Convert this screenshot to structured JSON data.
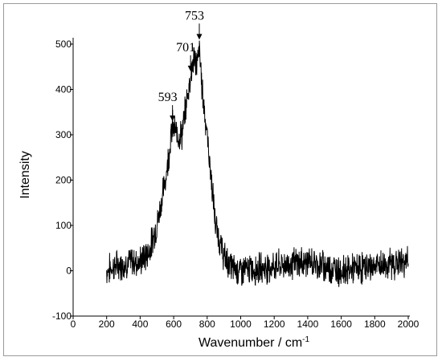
{
  "chart_data": {
    "type": "line",
    "xlabel": "Wavenumber / cm",
    "xlabel_superscript": "-1",
    "ylabel": "Intensity",
    "xlim": [
      0,
      2000
    ],
    "ylim": [
      -100,
      500
    ],
    "x_ticks": [
      0,
      200,
      400,
      600,
      800,
      1000,
      1200,
      1400,
      1600,
      1800,
      2000
    ],
    "y_ticks": [
      -100,
      0,
      100,
      200,
      300,
      400,
      500
    ],
    "grid": false,
    "line_color": "#000000",
    "series": [
      {
        "x": [
          200,
          250,
          300,
          350,
          400,
          450,
          500,
          550,
          593,
          620,
          650,
          680,
          701,
          720,
          740,
          753,
          770,
          800,
          850,
          900,
          950,
          1000,
          1100,
          1200,
          1300,
          1400,
          1500,
          1600,
          1700,
          1800,
          1900,
          2000
        ],
        "values": [
          0,
          10,
          15,
          20,
          20,
          40,
          100,
          200,
          320,
          300,
          300,
          380,
          430,
          470,
          455,
          490,
          400,
          300,
          100,
          30,
          5,
          0,
          5,
          10,
          15,
          20,
          10,
          0,
          5,
          10,
          15,
          20
        ]
      }
    ],
    "annotations": [
      {
        "text": "593",
        "x": 593,
        "y": 330
      },
      {
        "text": "701",
        "x": 701,
        "y": 440
      },
      {
        "text": "753",
        "x": 753,
        "y": 510
      }
    ]
  }
}
